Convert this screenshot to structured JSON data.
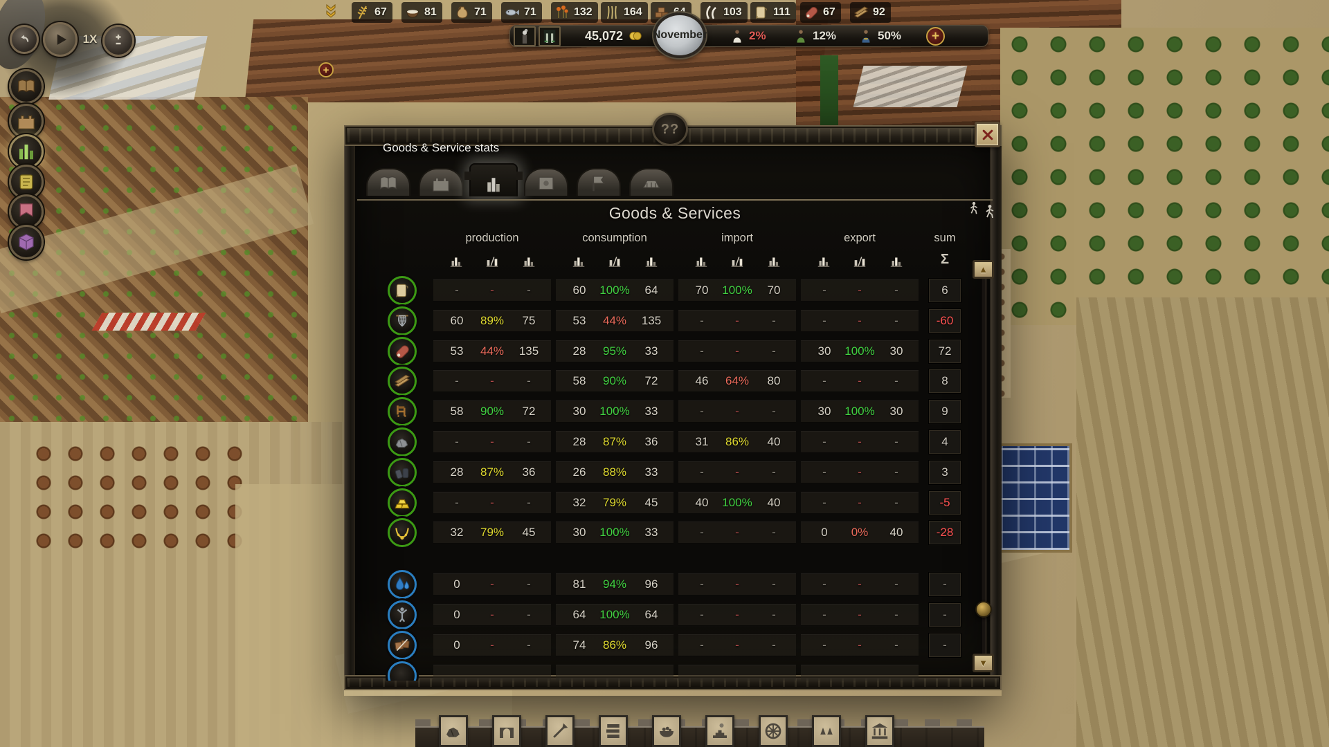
{
  "hud": {
    "speed_label": "1X",
    "resources": [
      {
        "icon": "wheat-icon",
        "value": "67"
      },
      {
        "icon": "bowl-icon",
        "value": "81"
      },
      {
        "icon": "jug-icon",
        "value": "71"
      },
      {
        "icon": "fish-icon",
        "value": "71"
      },
      {
        "icon": "flowers-icon",
        "value": "132"
      },
      {
        "icon": "flax-icon",
        "value": "164"
      },
      {
        "icon": "bricks-icon",
        "value": "64"
      },
      {
        "icon": "horns-icon",
        "value": "103"
      },
      {
        "icon": "papyrus-icon",
        "value": "111"
      },
      {
        "icon": "meat-icon",
        "value": "67"
      },
      {
        "icon": "planks-icon",
        "value": "92"
      }
    ],
    "treasury": "45,072",
    "month": "November",
    "population_stats": [
      {
        "icon": "citizen-worker-icon",
        "value": "2%",
        "tone": "red"
      },
      {
        "icon": "citizen-merchant-icon",
        "value": "12%",
        "tone": "normal"
      },
      {
        "icon": "citizen-noble-icon",
        "value": "50%",
        "tone": "normal"
      }
    ],
    "plus_glyph": "+"
  },
  "sidebar": {
    "buttons": [
      {
        "name": "menu-overview",
        "icon": "side-book-icon"
      },
      {
        "name": "menu-city",
        "icon": "side-wall-icon"
      },
      {
        "name": "menu-stats",
        "icon": "side-chart-icon",
        "selected": true
      },
      {
        "name": "menu-decrees",
        "icon": "side-scroll-icon"
      },
      {
        "name": "menu-banners",
        "icon": "side-banner-icon"
      },
      {
        "name": "menu-monuments",
        "icon": "side-block-icon"
      }
    ]
  },
  "dialog": {
    "tooltip": "Goods & Service stats",
    "help_glyph": "??",
    "title": "Goods & Services",
    "tabs": [
      {
        "name": "tab-overview",
        "icon": "tab-book-icon",
        "active": false
      },
      {
        "name": "tab-city",
        "icon": "tab-wall-icon",
        "active": false
      },
      {
        "name": "tab-goods-services",
        "icon": "tab-chart-icon",
        "active": true
      },
      {
        "name": "tab-trade",
        "icon": "tab-scroll-icon",
        "active": false
      },
      {
        "name": "tab-military",
        "icon": "tab-flag-icon",
        "active": false
      },
      {
        "name": "tab-monuments",
        "icon": "tab-arena-icon",
        "active": false
      }
    ],
    "columns": {
      "production": "production",
      "consumption": "consumption",
      "import": "import",
      "export": "export",
      "sum": "sum",
      "sum_glyph": "Σ"
    },
    "goods_rows": [
      {
        "icon": "papyrus-scroll-icon",
        "ring": "green",
        "p": [
          "-",
          "-",
          "-"
        ],
        "pt": "dash",
        "c": [
          "60",
          "100%",
          "64"
        ],
        "ct": "green",
        "i": [
          "70",
          "100%",
          "70"
        ],
        "it": "green",
        "e": [
          "-",
          "-",
          "-"
        ],
        "et": "dash",
        "s": "6",
        "st": "pos"
      },
      {
        "icon": "fishing-net-icon",
        "ring": "green",
        "p": [
          "60",
          "89%",
          "75"
        ],
        "pt": "yellow",
        "c": [
          "53",
          "44%",
          "135"
        ],
        "ct": "red",
        "i": [
          "-",
          "-",
          "-"
        ],
        "it": "dash",
        "e": [
          "-",
          "-",
          "-"
        ],
        "et": "dash",
        "s": "-60",
        "st": "neg"
      },
      {
        "icon": "meat-leg-icon",
        "ring": "green",
        "p": [
          "53",
          "44%",
          "135"
        ],
        "pt": "red",
        "c": [
          "28",
          "95%",
          "33"
        ],
        "ct": "green",
        "i": [
          "-",
          "-",
          "-"
        ],
        "it": "dash",
        "e": [
          "30",
          "100%",
          "30"
        ],
        "et": "green",
        "s": "72",
        "st": "pos"
      },
      {
        "icon": "wood-planks-icon",
        "ring": "green",
        "p": [
          "-",
          "-",
          "-"
        ],
        "pt": "dash",
        "c": [
          "58",
          "90%",
          "72"
        ],
        "ct": "green",
        "i": [
          "46",
          "64%",
          "80"
        ],
        "it": "red",
        "e": [
          "-",
          "-",
          "-"
        ],
        "et": "dash",
        "s": "8",
        "st": "pos"
      },
      {
        "icon": "furniture-icon",
        "ring": "green",
        "p": [
          "58",
          "90%",
          "72"
        ],
        "pt": "green",
        "c": [
          "30",
          "100%",
          "33"
        ],
        "ct": "green",
        "i": [
          "-",
          "-",
          "-"
        ],
        "it": "dash",
        "e": [
          "30",
          "100%",
          "30"
        ],
        "et": "green",
        "s": "9",
        "st": "pos"
      },
      {
        "icon": "stone-icon",
        "ring": "green",
        "p": [
          "-",
          "-",
          "-"
        ],
        "pt": "dash",
        "c": [
          "28",
          "87%",
          "36"
        ],
        "ct": "yellow",
        "i": [
          "31",
          "86%",
          "40"
        ],
        "it": "yellow",
        "e": [
          "-",
          "-",
          "-"
        ],
        "et": "dash",
        "s": "4",
        "st": "pos"
      },
      {
        "icon": "metal-ingots-icon",
        "ring": "green",
        "p": [
          "28",
          "87%",
          "36"
        ],
        "pt": "yellow",
        "c": [
          "26",
          "88%",
          "33"
        ],
        "ct": "yellow",
        "i": [
          "-",
          "-",
          "-"
        ],
        "it": "dash",
        "e": [
          "-",
          "-",
          "-"
        ],
        "et": "dash",
        "s": "3",
        "st": "pos"
      },
      {
        "icon": "gold-bars-icon",
        "ring": "green",
        "p": [
          "-",
          "-",
          "-"
        ],
        "pt": "dash",
        "c": [
          "32",
          "79%",
          "45"
        ],
        "ct": "yellow",
        "i": [
          "40",
          "100%",
          "40"
        ],
        "it": "green",
        "e": [
          "-",
          "-",
          "-"
        ],
        "et": "dash",
        "s": "-5",
        "st": "neg"
      },
      {
        "icon": "jewelry-icon",
        "ring": "green",
        "p": [
          "32",
          "79%",
          "45"
        ],
        "pt": "yellow",
        "c": [
          "30",
          "100%",
          "33"
        ],
        "ct": "green",
        "i": [
          "-",
          "-",
          "-"
        ],
        "it": "dash",
        "e": [
          "0",
          "0%",
          "40"
        ],
        "et": "red",
        "s": "-28",
        "st": "neg"
      }
    ],
    "service_rows": [
      {
        "icon": "water-icon",
        "ring": "blue",
        "p": [
          "0",
          "-",
          "-"
        ],
        "pt": "dash",
        "c": [
          "81",
          "94%",
          "96"
        ],
        "ct": "green",
        "i": [
          "-",
          "-",
          "-"
        ],
        "it": "dash",
        "e": [
          "-",
          "-",
          "-"
        ],
        "et": "dash",
        "s": "-",
        "st": "dash"
      },
      {
        "icon": "religion-icon",
        "ring": "blue",
        "p": [
          "0",
          "-",
          "-"
        ],
        "pt": "dash",
        "c": [
          "64",
          "100%",
          "64"
        ],
        "ct": "green",
        "i": [
          "-",
          "-",
          "-"
        ],
        "it": "dash",
        "e": [
          "-",
          "-",
          "-"
        ],
        "et": "dash",
        "s": "-",
        "st": "dash"
      },
      {
        "icon": "education-icon",
        "ring": "blue",
        "p": [
          "0",
          "-",
          "-"
        ],
        "pt": "dash",
        "c": [
          "74",
          "86%",
          "96"
        ],
        "ct": "yellow",
        "i": [
          "-",
          "-",
          "-"
        ],
        "it": "dash",
        "e": [
          "-",
          "-",
          "-"
        ],
        "et": "dash",
        "s": "-",
        "st": "dash"
      }
    ],
    "scrollbar": {
      "up_glyph": "▲",
      "down_glyph": "▼"
    }
  },
  "toolbar": {
    "tiles": [
      {
        "name": "build-quarry",
        "icon": "tool-rocks-icon"
      },
      {
        "name": "build-arch",
        "icon": "tool-arch-icon"
      },
      {
        "name": "build-tools",
        "icon": "tool-shovel-icon"
      },
      {
        "name": "build-storage",
        "icon": "tool-slabs-icon"
      },
      {
        "name": "build-food",
        "icon": "tool-bowl-icon"
      },
      {
        "name": "build-industry",
        "icon": "tool-ziggurat-icon"
      },
      {
        "name": "build-roads",
        "icon": "tool-wheel-icon"
      },
      {
        "name": "build-nature",
        "icon": "tool-trees-icon"
      },
      {
        "name": "build-temple",
        "icon": "tool-temple-icon"
      }
    ]
  }
}
